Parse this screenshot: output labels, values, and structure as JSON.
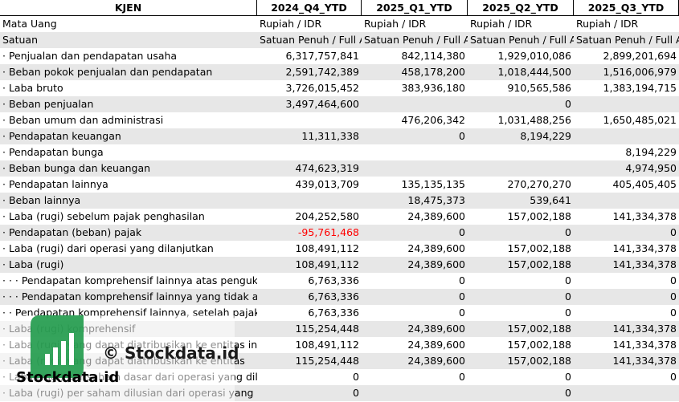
{
  "table": {
    "header": [
      "KJEN",
      "2024_Q4_YTD",
      "2025_Q1_YTD",
      "2025_Q2_YTD",
      "2025_Q3_YTD"
    ],
    "rows": [
      [
        "Mata Uang",
        "Rupiah / IDR",
        "Rupiah / IDR",
        "Rupiah / IDR",
        "Rupiah / IDR"
      ],
      [
        "Satuan",
        "Satuan Penuh / Full A",
        "Satuan Penuh / Full A",
        "Satuan Penuh / Full A",
        "Satuan Penuh / Full A"
      ],
      [
        "· Penjualan dan pendapatan usaha",
        "6,317,757,841",
        "842,114,380",
        "1,929,010,086",
        "2,899,201,694"
      ],
      [
        "· Beban pokok penjualan dan pendapatan",
        "2,591,742,389",
        "458,178,200",
        "1,018,444,500",
        "1,516,006,979"
      ],
      [
        "· Laba bruto",
        "3,726,015,452",
        "383,936,180",
        "910,565,586",
        "1,383,194,715"
      ],
      [
        "· Beban penjualan",
        "3,497,464,600",
        null,
        "0",
        null
      ],
      [
        "· Beban umum dan administrasi",
        null,
        "476,206,342",
        "1,031,488,256",
        "1,650,485,021"
      ],
      [
        "· Pendapatan keuangan",
        "11,311,338",
        "0",
        "8,194,229",
        null
      ],
      [
        "· Pendapatan bunga",
        null,
        null,
        null,
        "8,194,229"
      ],
      [
        "· Beban bunga dan keuangan",
        "474,623,319",
        null,
        null,
        "4,974,950"
      ],
      [
        "· Pendapatan lainnya",
        "439,013,709",
        "135,135,135",
        "270,270,270",
        "405,405,405"
      ],
      [
        "· Beban lainnya",
        null,
        "18,475,373",
        "539,641",
        null
      ],
      [
        "· Laba (rugi) sebelum pajak penghasilan",
        "204,252,580",
        "24,389,600",
        "157,002,188",
        "141,334,378"
      ],
      [
        "· Pendapatan (beban) pajak",
        "-95,761,468",
        "0",
        "0",
        "0"
      ],
      [
        "· Laba (rugi) dari operasi yang dilanjutkan",
        "108,491,112",
        "24,389,600",
        "157,002,188",
        "141,334,378"
      ],
      [
        "· Laba (rugi)",
        "108,491,112",
        "24,389,600",
        "157,002,188",
        "141,334,378"
      ],
      [
        "· · · Pendapatan komprehensif lainnya atas penguku",
        "6,763,336",
        "0",
        "0",
        "0"
      ],
      [
        "· · · Pendapatan komprehensif lainnya yang tidak ak",
        "6,763,336",
        "0",
        "0",
        "0"
      ],
      [
        "· · Pendapatan komprehensif lainnya, setelah pajak",
        "6,763,336",
        "0",
        "0",
        "0"
      ],
      [
        "· Laba (rugi) komprehensif",
        "115,254,448",
        "24,389,600",
        "157,002,188",
        "141,334,378"
      ],
      [
        "· Laba (rugi) yang dapat diatribusikan ke entitas inc",
        "108,491,112",
        "24,389,600",
        "157,002,188",
        "141,334,378"
      ],
      [
        "· Laba (rugi) yang dapat diatribusikan ke entitas",
        "115,254,448",
        "24,389,600",
        "157,002,188",
        "141,334,378"
      ],
      [
        "· Laba (rugi) per saham dasar dari operasi yang dil",
        "0",
        "0",
        "0",
        "0"
      ],
      [
        "· Laba (rugi) per saham dilusian dari operasi yang",
        "0",
        null,
        "0",
        null
      ]
    ]
  },
  "watermark": {
    "center": "© Stockdata.id",
    "logo": "Stockdata.id"
  }
}
